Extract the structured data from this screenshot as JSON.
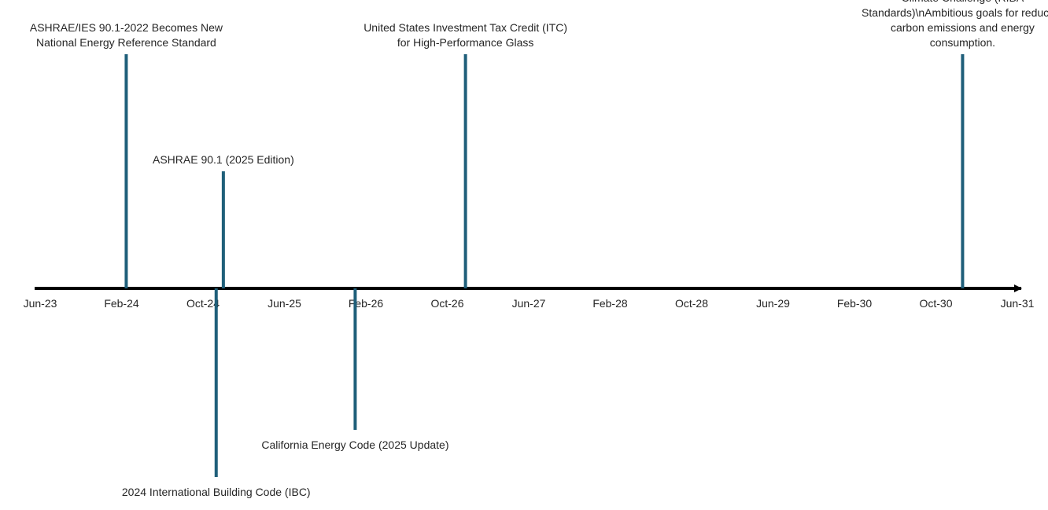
{
  "chart_data": {
    "type": "timeline",
    "title": "",
    "x_axis": {
      "start": "2023-06",
      "end": "2031-06",
      "tick_labels": [
        "Jun-23",
        "Feb-24",
        "Oct-24",
        "Jun-25",
        "Feb-26",
        "Oct-26",
        "Jun-27",
        "Feb-28",
        "Oct-28",
        "Jun-29",
        "Feb-30",
        "Oct-30",
        "Jun-31"
      ]
    },
    "grid": false,
    "line_color": "#000000",
    "marker_color": "#1f5f7a",
    "events": [
      {
        "date": "2024-02-15",
        "height": 1.0,
        "label_lines": [
          "ASHRAE/IES 90.1-2022 Becomes New",
          "National Energy Reference Standard"
        ]
      },
      {
        "date": "2024-11-10",
        "height": -1.0,
        "label_lines": [
          "2024 International Building Code (IBC)"
        ]
      },
      {
        "date": "2024-12-01",
        "height": 0.5,
        "label_lines": [
          "ASHRAE 90.1 (2025 Edition)"
        ]
      },
      {
        "date": "2025-12-30",
        "height": -0.75,
        "label_lines": [
          "California Energy Code (2025 Update)"
        ]
      },
      {
        "date": "2026-11-25",
        "height": 1.0,
        "label_lines": [
          "United States Investment Tax Credit (ITC)",
          "for High-Performance Glass"
        ]
      },
      {
        "date": "2030-12-20",
        "height": 1.0,
        "label_lines": [
          "Climate Challenge (RIBA",
          "Standards)\\nAmbitious goals for reducing",
          "carbon emissions and energy",
          "consumption."
        ]
      }
    ]
  }
}
